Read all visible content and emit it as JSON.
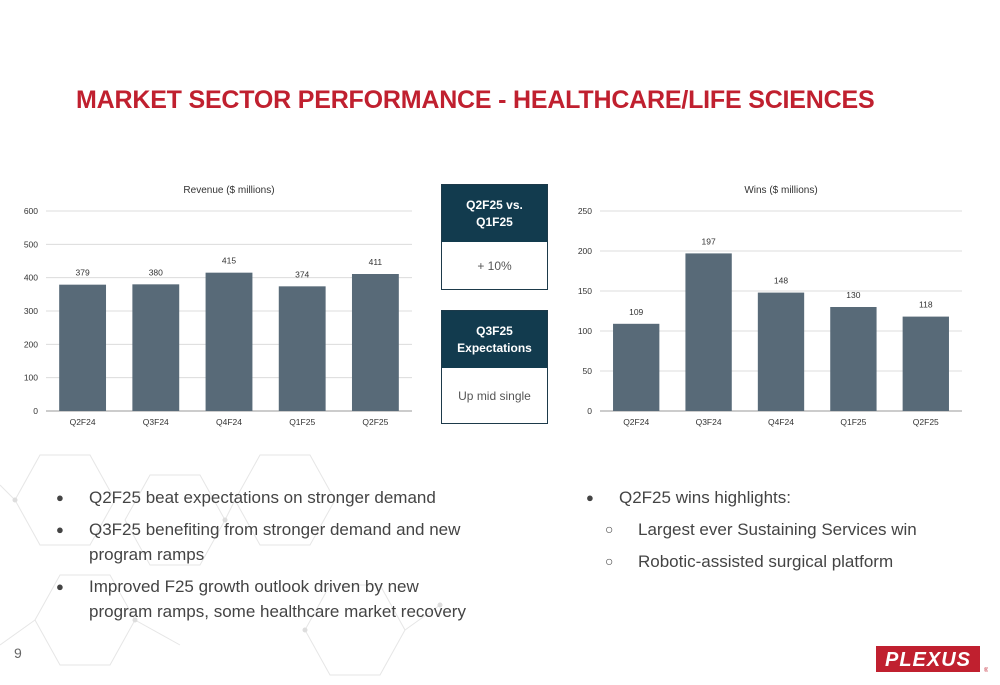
{
  "slide": {
    "title": "MARKET SECTOR PERFORMANCE - HEALTHCARE/LIFE SCIENCES",
    "page_number": "9"
  },
  "kpis": [
    {
      "heading": "Q2F25 vs. Q1F25",
      "value": "+ 10%"
    },
    {
      "heading": "Q3F25 Expectations",
      "value": "Up mid single"
    }
  ],
  "bullets_left": [
    {
      "text": "Q2F25 beat expectations on stronger demand"
    },
    {
      "text": "Q3F25 benefiting from stronger demand and new program ramps"
    },
    {
      "text": "Improved F25 growth outlook driven by new program ramps, some healthcare market recovery"
    }
  ],
  "bullets_right": [
    {
      "text": "Q2F25 wins highlights:",
      "level": 0
    },
    {
      "text": "Largest ever Sustaining Services win",
      "level": 1
    },
    {
      "text": "Robotic-assisted surgical platform",
      "level": 1
    }
  ],
  "bullet_glyphs": {
    "primary": "●",
    "secondary": "○"
  },
  "logo": {
    "text": "PLEXUS",
    "color": "#c0202f"
  },
  "colors": {
    "accent": "#c0202f",
    "bar": "#586a78",
    "kpi_header": "#123b4e"
  },
  "chart_data": [
    {
      "type": "bar",
      "title": "Revenue ($ millions)",
      "categories": [
        "Q2F24",
        "Q3F24",
        "Q4F24",
        "Q1F25",
        "Q2F25"
      ],
      "values": [
        379,
        380,
        415,
        374,
        411
      ],
      "ylim": [
        0,
        600
      ],
      "yticks": [
        0,
        100,
        200,
        300,
        400,
        500,
        600
      ],
      "xlabel": "",
      "ylabel": "",
      "grid": true,
      "data_labels": true
    },
    {
      "type": "bar",
      "title": "Wins ($ millions)",
      "categories": [
        "Q2F24",
        "Q3F24",
        "Q4F24",
        "Q1F25",
        "Q2F25"
      ],
      "values": [
        109,
        197,
        148,
        130,
        118
      ],
      "ylim": [
        0,
        250
      ],
      "yticks": [
        0,
        50,
        100,
        150,
        200,
        250
      ],
      "xlabel": "",
      "ylabel": "",
      "grid": true,
      "data_labels": true
    }
  ]
}
